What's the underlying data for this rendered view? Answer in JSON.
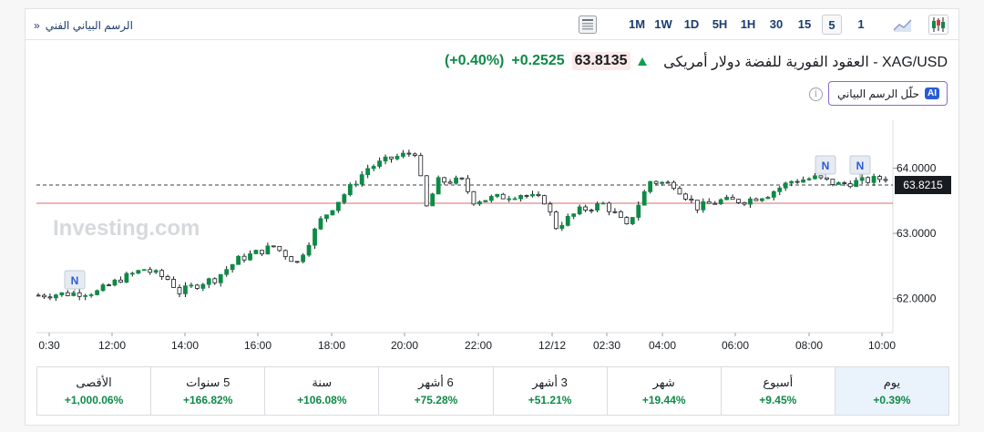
{
  "toolbar": {
    "technical_chart_link": "الرسم البياني الفني",
    "chevron": "»",
    "timeframes": [
      "1M",
      "1W",
      "1D",
      "5H",
      "1H",
      "30",
      "15",
      "5",
      "1"
    ],
    "active_timeframe": "5",
    "icons": [
      "table-icon",
      "area-chart-icon",
      "candlestick-icon"
    ]
  },
  "header": {
    "title": "XAG/USD - العقود الفورية للفضة دولار أمريكى",
    "price": "63.8135",
    "change": "+0.2525",
    "change_pct": "(+0.40%)",
    "ai_label": "AI",
    "ai_button": "حلّل الرسم البياني",
    "info_symbol": "i"
  },
  "chart_data": {
    "type": "candlestick",
    "watermark": "Investing.com",
    "y_ticks": [
      "64.0000",
      "63.0000",
      "62.0000"
    ],
    "x_ticks": [
      "0:30",
      "12:00",
      "14:00",
      "16:00",
      "18:00",
      "20:00",
      "22:00",
      "12/12",
      "02:30",
      "04:00",
      "06:00",
      "08:00",
      "10:00"
    ],
    "current_price_label": "63.8215",
    "news_marker": "N",
    "close_path": [
      [
        0,
        62.05
      ],
      [
        6,
        62.08
      ],
      [
        10,
        62.1
      ],
      [
        14,
        62.3
      ],
      [
        18,
        62.45
      ],
      [
        22,
        62.3
      ],
      [
        24,
        62.1
      ],
      [
        28,
        62.25
      ],
      [
        30,
        62.3
      ],
      [
        34,
        62.6
      ],
      [
        40,
        62.8
      ],
      [
        44,
        62.55
      ],
      [
        48,
        63.2
      ],
      [
        52,
        63.6
      ],
      [
        56,
        64.0
      ],
      [
        60,
        64.15
      ],
      [
        64,
        64.25
      ],
      [
        66,
        63.4
      ],
      [
        68,
        63.8
      ],
      [
        72,
        63.8
      ],
      [
        74,
        63.5
      ],
      [
        78,
        63.55
      ],
      [
        82,
        63.6
      ],
      [
        86,
        63.5
      ],
      [
        88,
        63.1
      ],
      [
        92,
        63.35
      ],
      [
        96,
        63.45
      ],
      [
        98,
        63.3
      ],
      [
        100,
        63.1
      ],
      [
        104,
        63.8
      ],
      [
        108,
        63.75
      ],
      [
        112,
        63.4
      ],
      [
        116,
        63.5
      ],
      [
        120,
        63.5
      ],
      [
        124,
        63.6
      ],
      [
        128,
        63.8
      ],
      [
        132,
        63.85
      ],
      [
        136,
        63.75
      ],
      [
        140,
        63.8
      ],
      [
        144,
        63.85
      ]
    ]
  },
  "performance": [
    {
      "label": "يوم",
      "value": "+0.39%"
    },
    {
      "label": "أسبوع",
      "value": "+9.45%"
    },
    {
      "label": "شهر",
      "value": "+19.44%"
    },
    {
      "label": "3 أشهر",
      "value": "+51.21%"
    },
    {
      "label": "6 أشهر",
      "value": "+75.28%"
    },
    {
      "label": "سنة",
      "value": "+106.08%"
    },
    {
      "label": "5 سنوات",
      "value": "+166.82%"
    },
    {
      "label": "الأقصى",
      "value": "+1,000.06%"
    }
  ],
  "colors": {
    "up": "#0e8a47",
    "down": "#181c21",
    "ref_line": "#e06b6b",
    "price_tag": "#181c21"
  }
}
